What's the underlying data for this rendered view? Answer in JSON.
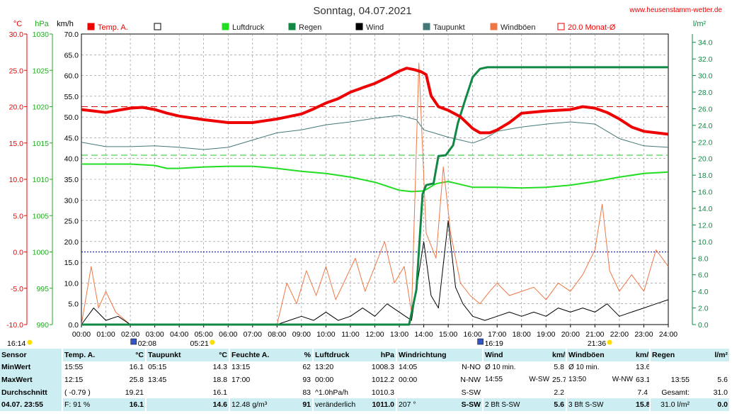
{
  "header": {
    "title": "Sonntag, 04.07.2021",
    "website": "www.heusenstamm-wetter.de"
  },
  "axes": {
    "temp_unit": "°C",
    "pressure_unit": "hPa",
    "wind_unit": "km/h",
    "rain_unit": "l/m²",
    "temp_ticks": [
      "30.0",
      "25.0",
      "20.0",
      "15.0",
      "10.0",
      "5.0",
      "0.0",
      "-5.0",
      "-10.0"
    ],
    "pressure_ticks": [
      "1030",
      "1025",
      "1020",
      "1015",
      "1010",
      "1005",
      "1000",
      "995",
      "990"
    ],
    "wind_ticks": [
      "70.0",
      "65.0",
      "60.0",
      "55.0",
      "50.0",
      "45.0",
      "40.0",
      "35.0",
      "30.0",
      "25.0",
      "20.0",
      "15.0",
      "10.0",
      "5.0",
      "0.0"
    ],
    "rain_ticks": [
      "34.0",
      "32.0",
      "30.0",
      "28.0",
      "26.0",
      "24.0",
      "22.0",
      "20.0",
      "18.0",
      "16.0",
      "14.0",
      "12.0",
      "10.0",
      "8.0",
      "6.0",
      "4.0",
      "2.0",
      "0.0"
    ],
    "time_ticks": [
      "00:00",
      "01:00",
      "02:00",
      "03:00",
      "04:00",
      "05:00",
      "06:00",
      "07:00",
      "08:00",
      "09:00",
      "10:00",
      "11:00",
      "12:00",
      "13:00",
      "14:00",
      "15:00",
      "16:00",
      "17:00",
      "18:00",
      "19:00",
      "20:00",
      "21:00",
      "22:00",
      "23:00",
      "24:00"
    ]
  },
  "legend": [
    {
      "label": "Temp. A.",
      "color": "#ee0000",
      "filled": true
    },
    {
      "label": "",
      "color": "#000000",
      "filled": false
    },
    {
      "label": "Luftdruck",
      "color": "#22dd22",
      "filled": true
    },
    {
      "label": "Regen",
      "color": "#118844",
      "filled": true
    },
    {
      "label": "Wind",
      "color": "#000000",
      "filled": true
    },
    {
      "label": "Taupunkt",
      "color": "#447777",
      "filled": true
    },
    {
      "label": "Windböen",
      "color": "#ee7744",
      "filled": true
    },
    {
      "label": "20.0 Monat-Ø",
      "color": "#ee0000",
      "filled": false
    }
  ],
  "markers": {
    "sunrise": "05:21",
    "sunset": "21:36",
    "left_time": "16:14",
    "tmin_time": "02:08",
    "tmax_time": "16:19"
  },
  "chart_data": {
    "type": "line",
    "x_range": [
      "00:00",
      "24:00"
    ],
    "temp_range_c": [
      -10,
      30
    ],
    "pressure_range_hpa": [
      990,
      1030
    ],
    "wind_range_kmh": [
      0,
      70
    ],
    "rain_range_lm2": [
      0,
      35
    ],
    "reference_lines": {
      "temp_month_avg_c": 20.0,
      "temp_zero_c": 0.0,
      "rain_level_lm2": 20.4
    },
    "series": [
      {
        "name": "Temp. A.",
        "unit": "°C",
        "points": [
          [
            0,
            19.6
          ],
          [
            0.5,
            19.4
          ],
          [
            1,
            19.2
          ],
          [
            1.5,
            19.5
          ],
          [
            2,
            19.8
          ],
          [
            2.5,
            19.9
          ],
          [
            3,
            19.6
          ],
          [
            3.5,
            19.1
          ],
          [
            4,
            18.7
          ],
          [
            5,
            18.2
          ],
          [
            6,
            17.8
          ],
          [
            7,
            17.8
          ],
          [
            8,
            18.3
          ],
          [
            9,
            19.0
          ],
          [
            9.5,
            19.7
          ],
          [
            10,
            20.5
          ],
          [
            10.5,
            21.1
          ],
          [
            11,
            22.0
          ],
          [
            11.5,
            22.6
          ],
          [
            12,
            23.2
          ],
          [
            12.5,
            24.0
          ],
          [
            13,
            24.9
          ],
          [
            13.3,
            25.3
          ],
          [
            13.6,
            25.1
          ],
          [
            13.9,
            24.8
          ],
          [
            14.1,
            24.4
          ],
          [
            14.3,
            21.5
          ],
          [
            14.6,
            20.0
          ],
          [
            15,
            19.5
          ],
          [
            15.5,
            18.6
          ],
          [
            16,
            17.0
          ],
          [
            16.3,
            16.4
          ],
          [
            16.7,
            16.4
          ],
          [
            17,
            16.8
          ],
          [
            17.5,
            17.8
          ],
          [
            18,
            19.1
          ],
          [
            19,
            19.4
          ],
          [
            20,
            19.6
          ],
          [
            20.5,
            20.0
          ],
          [
            21,
            19.8
          ],
          [
            21.5,
            19.2
          ],
          [
            22,
            18.3
          ],
          [
            22.5,
            17.2
          ],
          [
            23,
            16.6
          ],
          [
            24,
            16.2
          ]
        ]
      },
      {
        "name": "Taupunkt",
        "unit": "°C",
        "points": [
          [
            0,
            15.1
          ],
          [
            1,
            14.5
          ],
          [
            2,
            14.5
          ],
          [
            3,
            14.6
          ],
          [
            4,
            14.4
          ],
          [
            5,
            14.1
          ],
          [
            6,
            14.4
          ],
          [
            7,
            15.4
          ],
          [
            8,
            16.4
          ],
          [
            9,
            16.8
          ],
          [
            10,
            17.5
          ],
          [
            11,
            17.9
          ],
          [
            12,
            18.4
          ],
          [
            13,
            18.8
          ],
          [
            13.7,
            18.2
          ],
          [
            14,
            16.8
          ],
          [
            14.5,
            16.3
          ],
          [
            15,
            15.8
          ],
          [
            15.5,
            15.4
          ],
          [
            16,
            15.0
          ],
          [
            16.5,
            15.6
          ],
          [
            17,
            16.6
          ],
          [
            18,
            17.2
          ],
          [
            19,
            17.6
          ],
          [
            20,
            17.9
          ],
          [
            21,
            17.6
          ],
          [
            22,
            15.6
          ],
          [
            23,
            14.6
          ],
          [
            24,
            14.4
          ]
        ]
      },
      {
        "name": "Luftdruck",
        "unit": "hPa",
        "points": [
          [
            0,
            1012.1
          ],
          [
            1,
            1012.1
          ],
          [
            2,
            1012.1
          ],
          [
            3,
            1011.9
          ],
          [
            3.5,
            1011.5
          ],
          [
            4,
            1011.5
          ],
          [
            5,
            1011.7
          ],
          [
            6,
            1011.8
          ],
          [
            7,
            1011.8
          ],
          [
            8,
            1011.5
          ],
          [
            9,
            1011.1
          ],
          [
            10,
            1010.8
          ],
          [
            11,
            1010.3
          ],
          [
            12,
            1009.6
          ],
          [
            13,
            1008.5
          ],
          [
            13.5,
            1008.3
          ],
          [
            14,
            1008.4
          ],
          [
            14.5,
            1009.4
          ],
          [
            15,
            1009.7
          ],
          [
            15.5,
            1009.3
          ],
          [
            16,
            1008.9
          ],
          [
            17,
            1008.9
          ],
          [
            18,
            1008.8
          ],
          [
            19,
            1008.9
          ],
          [
            20,
            1009.2
          ],
          [
            21,
            1009.7
          ],
          [
            22,
            1010.3
          ],
          [
            23,
            1010.8
          ],
          [
            24,
            1011.0
          ]
        ]
      },
      {
        "name": "Regen",
        "unit": "l/m²",
        "points": [
          [
            0,
            0
          ],
          [
            13.4,
            0
          ],
          [
            13.7,
            4.2
          ],
          [
            13.95,
            15.7
          ],
          [
            14.1,
            16.8
          ],
          [
            14.4,
            17.0
          ],
          [
            14.6,
            20.3
          ],
          [
            14.9,
            20.4
          ],
          [
            15.2,
            21.6
          ],
          [
            15.4,
            24.3
          ],
          [
            15.7,
            27.1
          ],
          [
            16,
            29.8
          ],
          [
            16.3,
            30.8
          ],
          [
            16.6,
            31.0
          ],
          [
            24,
            31.0
          ]
        ]
      },
      {
        "name": "Wind",
        "unit": "km/h",
        "points": [
          [
            0,
            0
          ],
          [
            0.5,
            4
          ],
          [
            1,
            1
          ],
          [
            1.5,
            2
          ],
          [
            2,
            0
          ],
          [
            3,
            0
          ],
          [
            4,
            0
          ],
          [
            5,
            0
          ],
          [
            6,
            0
          ],
          [
            7,
            0
          ],
          [
            8,
            0
          ],
          [
            8.5,
            1
          ],
          [
            9,
            2
          ],
          [
            9.5,
            1
          ],
          [
            10,
            3
          ],
          [
            10.5,
            1
          ],
          [
            11,
            2
          ],
          [
            11.5,
            4
          ],
          [
            12,
            2
          ],
          [
            12.5,
            5
          ],
          [
            13,
            3
          ],
          [
            13.5,
            1
          ],
          [
            14,
            20
          ],
          [
            14.3,
            7
          ],
          [
            14.6,
            4
          ],
          [
            15,
            25
          ],
          [
            15.3,
            9
          ],
          [
            15.6,
            5
          ],
          [
            16,
            2
          ],
          [
            16.5,
            1
          ],
          [
            17,
            2
          ],
          [
            17.5,
            3
          ],
          [
            18,
            2
          ],
          [
            18.5,
            3
          ],
          [
            19,
            2
          ],
          [
            19.5,
            4
          ],
          [
            20,
            3
          ],
          [
            20.5,
            4
          ],
          [
            21,
            3
          ],
          [
            21.5,
            5
          ],
          [
            22,
            2
          ],
          [
            22.5,
            3
          ],
          [
            23,
            4
          ],
          [
            23.5,
            5
          ],
          [
            24,
            6
          ]
        ]
      },
      {
        "name": "Windböen",
        "unit": "km/h",
        "points": [
          [
            0,
            0
          ],
          [
            0.4,
            14
          ],
          [
            0.7,
            4
          ],
          [
            1,
            8
          ],
          [
            1.4,
            3
          ],
          [
            2,
            0
          ],
          [
            3,
            0
          ],
          [
            5,
            0
          ],
          [
            7,
            0
          ],
          [
            8,
            0
          ],
          [
            8.4,
            10
          ],
          [
            8.8,
            5
          ],
          [
            9.2,
            13
          ],
          [
            9.6,
            7
          ],
          [
            10,
            14
          ],
          [
            10.4,
            6
          ],
          [
            10.8,
            11
          ],
          [
            11.2,
            16
          ],
          [
            11.6,
            8
          ],
          [
            12,
            14
          ],
          [
            12.4,
            20
          ],
          [
            12.8,
            10
          ],
          [
            13.2,
            14
          ],
          [
            13.5,
            3
          ],
          [
            13.8,
            63
          ],
          [
            14.1,
            22
          ],
          [
            14.5,
            16
          ],
          [
            14.8,
            38
          ],
          [
            15.1,
            22
          ],
          [
            15.5,
            10
          ],
          [
            15.9,
            7
          ],
          [
            16.3,
            5
          ],
          [
            16.7,
            8
          ],
          [
            17,
            10
          ],
          [
            17.5,
            7
          ],
          [
            18,
            8
          ],
          [
            18.5,
            9
          ],
          [
            19,
            6
          ],
          [
            19.5,
            10
          ],
          [
            20,
            8
          ],
          [
            20.5,
            12
          ],
          [
            21,
            18
          ],
          [
            21.3,
            29
          ],
          [
            21.6,
            13
          ],
          [
            22,
            8
          ],
          [
            22.5,
            12
          ],
          [
            23,
            8
          ],
          [
            23.5,
            18
          ],
          [
            24,
            14
          ]
        ]
      }
    ]
  },
  "table": {
    "header": {
      "sensor": "Sensor",
      "temp": "Temp. A.",
      "temp_unit": "°C",
      "dew": "Taupunkt",
      "dew_unit": "°C",
      "hum": "Feuchte A.",
      "hum_unit": "%",
      "press": "Luftdruck",
      "press_unit": "hPa",
      "dir": "Windrichtung",
      "wind": "Wind",
      "wind_unit": "km/h",
      "gust": "Windböen",
      "gust_unit": "km/h",
      "rain": "Regen",
      "rain_unit": "l/m²"
    },
    "rows": [
      {
        "label": "MinWert",
        "temp_t": "15:55",
        "temp_v": "16.1",
        "dew_t": "05:15",
        "dew_v": "14.3",
        "hum_t": "13:15",
        "hum_v": "62",
        "press_t": "13:20",
        "press_v": "1008.3",
        "dir_t": "14:05",
        "dir_v": "N-NO",
        "wind_t": "Ø 10 min.",
        "wind_v": "5.8",
        "gust_t": "Ø 10 min.",
        "gust_v": "13.6",
        "rain_t": "",
        "rain_v": "",
        "mid_w": "",
        "mid_g": ""
      },
      {
        "label": "MaxWert",
        "temp_t": "12:15",
        "temp_v": "25.8",
        "dew_t": "13:45",
        "dew_v": "18.8",
        "hum_t": "17:00",
        "hum_v": "93",
        "press_t": "00:00",
        "press_v": "1012.2",
        "dir_t": "00:00",
        "dir_v": "N-NW",
        "wind_t": "14:55",
        "wind_v": "25.7",
        "gust_t": "13:50",
        "gust_v": "63.1",
        "rain_t": "13:55",
        "rain_v": "5.6",
        "mid_w": "W-SW",
        "mid_g": "W-NW"
      },
      {
        "label": "Durchschnitt",
        "temp_t": "( -0.79 )",
        "temp_v": "19.21",
        "dew_t": "",
        "dew_v": "16.1",
        "hum_t": "",
        "hum_v": "83",
        "press_t": "^1.0hPa/h",
        "press_v": "1010.3",
        "dir_t": "",
        "dir_v": "S-SW",
        "wind_t": "",
        "wind_v": "2.2",
        "gust_t": "",
        "gust_v": "7.4",
        "rain_t": "Gesamt:",
        "rain_v": "31.0",
        "mid_w": "",
        "mid_g": ""
      },
      {
        "label": "04.07. 23:55",
        "temp_t": "F: 91 %",
        "temp_v": "16.1",
        "dew_t": "",
        "dew_v": "14.6",
        "hum_t": "12.48 g/m³",
        "hum_v": "91",
        "press_t": "veränderlich",
        "press_v": "1011.0",
        "dir_t": "207 °",
        "dir_v": "S-SW",
        "wind_t": "2 Bft S-SW",
        "wind_v": "5.6",
        "gust_t": "3 Bft S-SW",
        "gust_v": "15.8",
        "rain_t": "31.0 l/m²",
        "rain_v": "0.0",
        "mid_w": "",
        "mid_g": ""
      }
    ]
  }
}
